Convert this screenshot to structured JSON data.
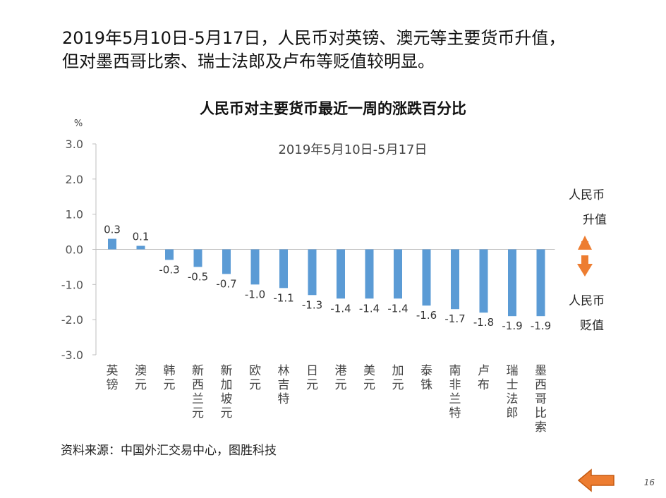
{
  "headline": {
    "line1": "2019年5月10日-5月17日，人民币对英镑、澳元等主要货币升值，",
    "line2": "但对墨西哥比索、瑞士法郎及卢布等贬值较明显。"
  },
  "legend": {
    "up_line1": "人民币",
    "up_line2": "升值",
    "down_line1": "人民币",
    "down_line2": "贬值",
    "up_color": "#ED7D31",
    "down_color": "#ED7D31"
  },
  "source": "资料来源：中国外汇交易中心，图胜科技",
  "page_number": "16",
  "nav": {
    "back_icon": "left-arrow-icon",
    "color": "#ED7D31"
  },
  "chart_data": {
    "type": "bar",
    "title": "人民币对主要货币最近一周的涨跌百分比",
    "subtitle": "2019年5月10日-5月17日",
    "ylabel": "%",
    "ylim": [
      -3.0,
      3.0
    ],
    "yticks": [
      "3.0",
      "2.0",
      "1.0",
      "0.0",
      "-1.0",
      "-2.0",
      "-3.0"
    ],
    "categories": [
      "英镑",
      "澳元",
      "韩元",
      "新西兰元",
      "新加坡元",
      "欧元",
      "林吉特",
      "日元",
      "港元",
      "美元",
      "加元",
      "泰铢",
      "南非兰特",
      "卢布",
      "瑞士法郎",
      "墨西哥比索"
    ],
    "values": [
      0.3,
      0.1,
      -0.3,
      -0.5,
      -0.7,
      -1.0,
      -1.1,
      -1.3,
      -1.4,
      -1.4,
      -1.4,
      -1.6,
      -1.7,
      -1.8,
      -1.9,
      -1.9
    ],
    "value_labels": [
      "0.3",
      "0.1",
      "-0.3",
      "-0.5",
      "-0.7",
      "-1.0",
      "-1.1",
      "-1.3",
      "-1.4",
      "-1.4",
      "-1.4",
      "-1.6",
      "-1.7",
      "-1.8",
      "-1.9",
      "-1.9"
    ],
    "bar_color": "#5B9BD5",
    "grid": false
  }
}
